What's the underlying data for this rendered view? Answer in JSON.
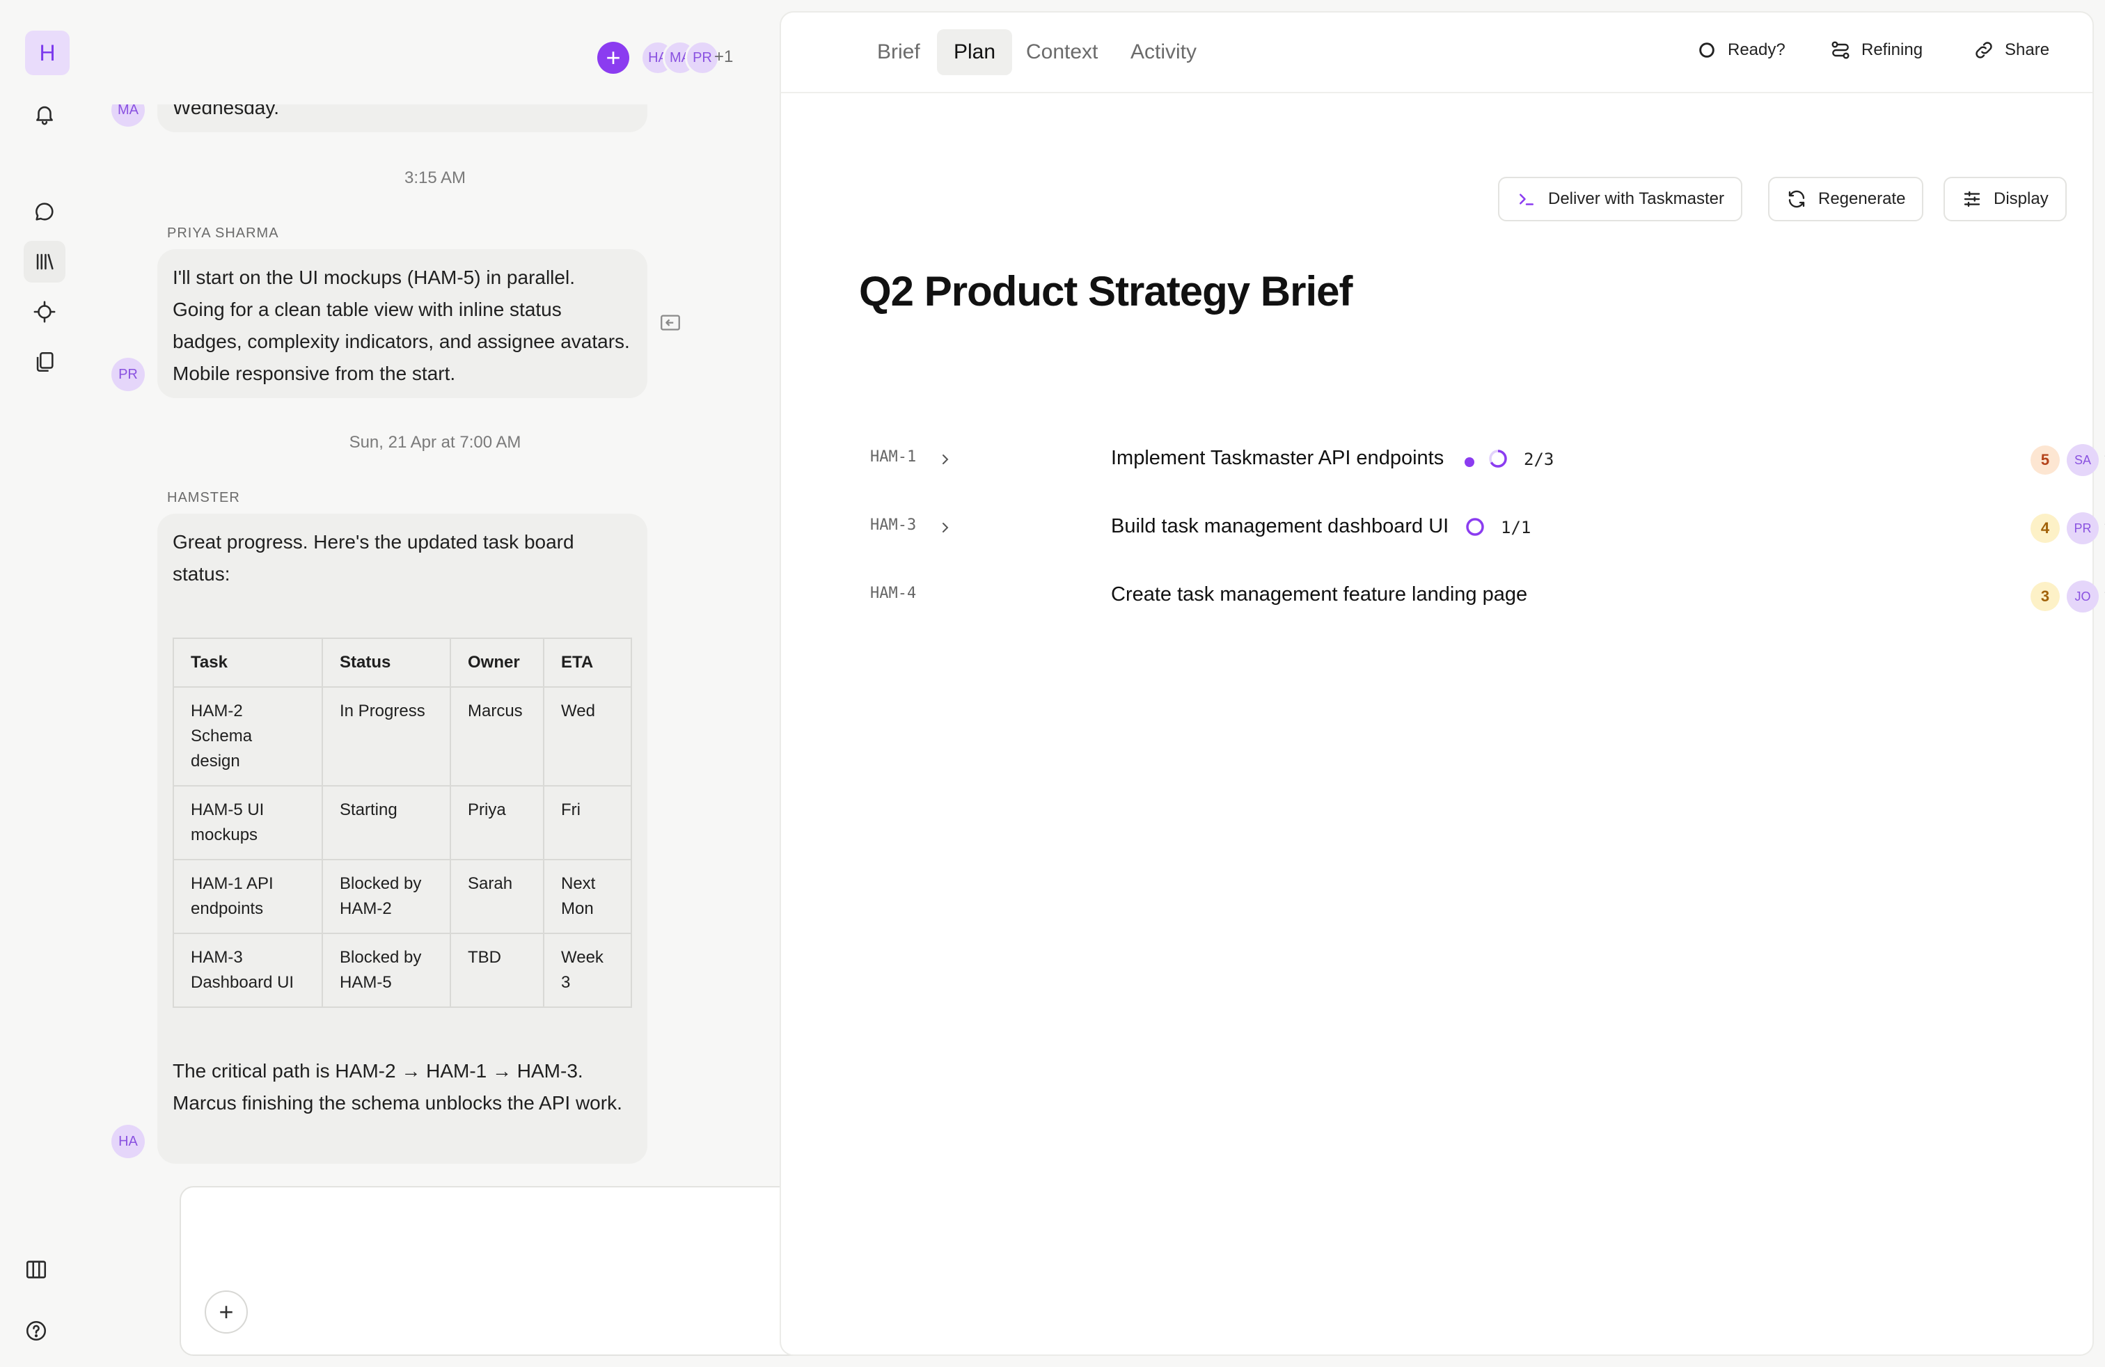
{
  "rail": {
    "logo": "H"
  },
  "header": {
    "avatars": [
      "HA",
      "MA",
      "PR"
    ],
    "more_count": "+1"
  },
  "chat": {
    "partial_message": "Wednesday.",
    "partial_avatar": "MA",
    "messages": [
      {
        "timestamp": "3:15 AM",
        "sender": "PRIYA SHARMA",
        "avatar": "PR",
        "text": "I'll start on the UI mockups (HAM-5) in parallel. Going for a clean table view with inline status badges, complexity indicators, and assignee avatars. Mobile responsive from the start."
      },
      {
        "timestamp": "Sun, 21 Apr at 7:00 AM",
        "sender": "HAMSTER",
        "avatar": "HA",
        "intro": "Great progress. Here's the updated task board status:",
        "table": {
          "headers": [
            "Task",
            "Status",
            "Owner",
            "ETA"
          ],
          "rows": [
            [
              "HAM-2 Schema design",
              "In Progress",
              "Marcus",
              "Wed"
            ],
            [
              "HAM-5 UI mockups",
              "Starting",
              "Priya",
              "Fri"
            ],
            [
              "HAM-1 API endpoints",
              "Blocked by HAM-2",
              "Sarah",
              "Next Mon"
            ],
            [
              "HAM-3 Dashboard UI",
              "Blocked by HAM-5",
              "TBD",
              "Week 3"
            ]
          ]
        },
        "outro": "The critical path is HAM-2 → HAM-1 → HAM-3. Marcus finishing the schema unblocks the API work."
      }
    ]
  },
  "composer": {
    "placeholder": ""
  },
  "panel": {
    "tabs": [
      "Brief",
      "Plan",
      "Context",
      "Activity"
    ],
    "active_tab": "Plan",
    "actions": {
      "ready": "Ready?",
      "refining": "Refining",
      "share": "Share"
    },
    "toolbar": {
      "deliver": "Deliver with Taskmaster",
      "regenerate": "Regenerate",
      "display": "Display"
    },
    "title": "Q2 Product Strategy Brief",
    "tasks": [
      {
        "id": "HAM-1",
        "title": "Implement Taskmaster API endpoints",
        "progress": "2/3",
        "score": "5",
        "assignee": "SA",
        "dash": "-"
      },
      {
        "id": "HAM-3",
        "title": "Build task management dashboard UI",
        "progress": "1/1",
        "score": "4",
        "assignee": "PR",
        "dash": "-"
      },
      {
        "id": "HAM-4",
        "title": "Create task management feature landing page",
        "progress": "",
        "score": "3",
        "assignee": "JO",
        "dash": "-"
      }
    ]
  },
  "colors": {
    "accent": "#8b3cf0",
    "score_high_bg": "#fde6d2",
    "score_high_fg": "#b4431b",
    "score_mid_bg": "#fdf1c7",
    "score_mid_fg": "#a1620a"
  }
}
